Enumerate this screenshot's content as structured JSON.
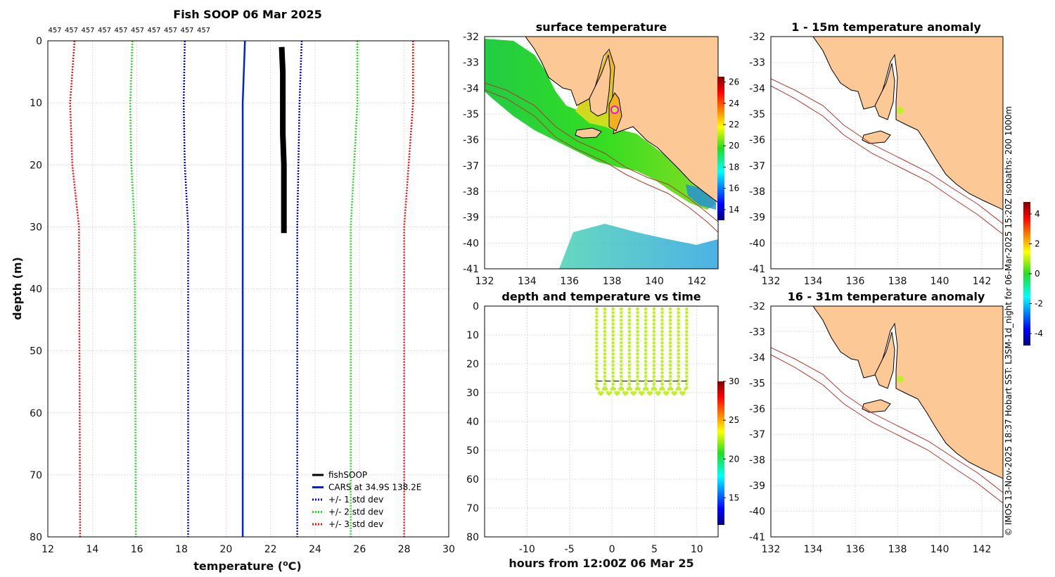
{
  "colors": {
    "fishsoop": "#000000",
    "cars": "#0022dd",
    "std1": "#0000dd",
    "std2": "#22dd22",
    "std3": "#ee1111",
    "land": "#fcc996",
    "isobath": "#b03a2e",
    "sensor": "#bff12a"
  },
  "copyright_text": "© IMOS 13-Nov-2025 18:37 Hobart SST: L3SM-1d_night for 06-Mar-2025 15:20Z isobaths: 200  1000m",
  "chart_data": [
    {
      "id": "profile",
      "type": "line",
      "title": "Fish SOOP 06 Mar 2025",
      "xlabel": "temperature (",
      "xlabel_sup": "o",
      "xlabel_end": "C)",
      "ylabel": "depth (m)",
      "xlim": [
        12,
        30
      ],
      "ylim": [
        0,
        80
      ],
      "xticks": [
        "12",
        "14",
        "16",
        "18",
        "20",
        "22",
        "24",
        "26",
        "28",
        "30"
      ],
      "yticks": [
        "0",
        "10",
        "20",
        "30",
        "40",
        "50",
        "60",
        "70",
        "80"
      ],
      "top_counts": [
        "457",
        "457",
        "457",
        "457",
        "457",
        "457",
        "457",
        "457",
        "457",
        "457"
      ],
      "series": [
        {
          "name": "fishSOOP",
          "style": "solid-thick",
          "points": [
            [
              22.5,
              1
            ],
            [
              22.55,
              5
            ],
            [
              22.55,
              10
            ],
            [
              22.55,
              15
            ],
            [
              22.6,
              20
            ],
            [
              22.6,
              25
            ],
            [
              22.6,
              28
            ],
            [
              22.6,
              31
            ]
          ]
        },
        {
          "name": "CARS at 34.9S 138.2E",
          "style": "solid",
          "points": [
            [
              20.85,
              0
            ],
            [
              20.8,
              5
            ],
            [
              20.75,
              10
            ],
            [
              20.75,
              20
            ],
            [
              20.75,
              30
            ],
            [
              20.75,
              80
            ]
          ]
        },
        {
          "name": "+/- 1 std dev",
          "style": "dotted",
          "color_key": "std1",
          "lower": [
            [
              18.15,
              0
            ],
            [
              18.1,
              10
            ],
            [
              18.15,
              20
            ],
            [
              18.3,
              30
            ],
            [
              18.3,
              80
            ]
          ],
          "upper": [
            [
              23.4,
              0
            ],
            [
              23.3,
              10
            ],
            [
              23.25,
              20
            ],
            [
              23.2,
              30
            ],
            [
              23.2,
              80
            ]
          ]
        },
        {
          "name": "+/- 2 std dev",
          "style": "dotted",
          "color_key": "std2",
          "lower": [
            [
              15.8,
              0
            ],
            [
              15.7,
              10
            ],
            [
              15.75,
              20
            ],
            [
              15.9,
              30
            ],
            [
              15.95,
              80
            ]
          ],
          "upper": [
            [
              25.9,
              0
            ],
            [
              25.9,
              10
            ],
            [
              25.75,
              20
            ],
            [
              25.6,
              30
            ],
            [
              25.6,
              80
            ]
          ]
        },
        {
          "name": "+/- 3 std dev",
          "style": "dotted",
          "color_key": "std3",
          "lower": [
            [
              13.2,
              0
            ],
            [
              13.0,
              10
            ],
            [
              13.1,
              20
            ],
            [
              13.4,
              30
            ],
            [
              13.45,
              80
            ]
          ],
          "upper": [
            [
              28.4,
              0
            ],
            [
              28.4,
              10
            ],
            [
              28.2,
              20
            ],
            [
              28.0,
              30
            ],
            [
              28.0,
              80
            ]
          ]
        }
      ],
      "legend": [
        "fishSOOP",
        "CARS at 34.9S 138.2E",
        "+/- 1 std dev",
        "+/- 2 std dev",
        "+/- 3 std dev"
      ],
      "legend_position": "bottom-right"
    },
    {
      "id": "surface",
      "type": "heatmap",
      "title": "surface temperature",
      "xlim": [
        132,
        143
      ],
      "ylim": [
        -41,
        -32
      ],
      "xticks": [
        "132",
        "134",
        "136",
        "138",
        "140",
        "142"
      ],
      "yticks": [
        "-32",
        "-33",
        "-34",
        "-35",
        "-36",
        "-37",
        "-38",
        "-39",
        "-40",
        "-41"
      ],
      "colorbar_ticks": [
        "14",
        "16",
        "18",
        "20",
        "22",
        "24",
        "26"
      ],
      "colorbar_range": [
        13,
        26.5
      ],
      "marker": {
        "lon": 138.2,
        "lat": -34.9
      }
    },
    {
      "id": "anomaly1",
      "type": "map",
      "title": "1 - 15m temperature anomaly",
      "xlim": [
        132,
        143
      ],
      "ylim": [
        -41,
        -32
      ],
      "xticks": [
        "132",
        "134",
        "136",
        "138",
        "140",
        "142"
      ],
      "yticks": [
        "-32",
        "-33",
        "-34",
        "-35",
        "-36",
        "-37",
        "-38",
        "-39",
        "-40",
        "-41"
      ],
      "marker": {
        "lon": 138.2,
        "lat": -34.9
      }
    },
    {
      "id": "depthtime",
      "type": "scatter",
      "title": "depth and temperature vs time",
      "xlabel": "hours from 12:00Z 06 Mar 25",
      "xlim": [
        -15,
        12.5
      ],
      "ylim": [
        0,
        80
      ],
      "xticks": [
        "-10",
        "-5",
        "0",
        "5",
        "10"
      ],
      "yticks": [
        "0",
        "10",
        "20",
        "30",
        "40",
        "50",
        "60",
        "70",
        "80"
      ],
      "colorbar_ticks": [
        "15",
        "20",
        "25",
        "30"
      ],
      "colorbar_range": [
        11.5,
        30
      ],
      "time_range": [
        -1.8,
        8.8
      ],
      "dive_count": 11,
      "mean_depth_line": 26
    },
    {
      "id": "anomaly2",
      "type": "map",
      "title": "16 - 31m temperature anomaly",
      "xlim": [
        132,
        143
      ],
      "ylim": [
        -41,
        -32
      ],
      "xticks": [
        "132",
        "134",
        "136",
        "138",
        "140",
        "142"
      ],
      "yticks": [
        "-32",
        "-33",
        "-34",
        "-35",
        "-36",
        "-37",
        "-38",
        "-39",
        "-40",
        "-41"
      ],
      "colorbar_ticks": [
        "4",
        "2",
        "0",
        "-2",
        "-4"
      ],
      "colorbar_range": [
        -4.8,
        4.8
      ],
      "marker": {
        "lon": 138.2,
        "lat": -34.9
      }
    }
  ]
}
